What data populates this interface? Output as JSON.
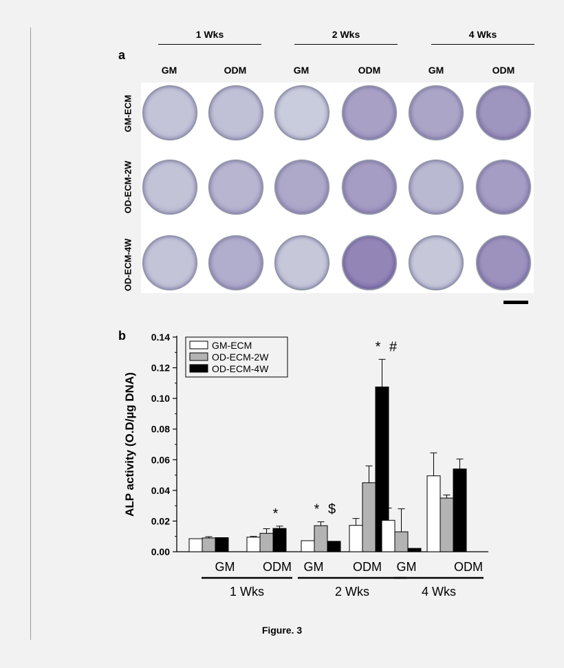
{
  "figure": {
    "caption": "Figure. 3",
    "panel_a_label": "a",
    "panel_b_label": "b",
    "week_headers": [
      "1 Wks",
      "2 Wks",
      "4 Wks"
    ],
    "column_headers": [
      "GM",
      "ODM",
      "GM",
      "ODM",
      "GM",
      "ODM"
    ],
    "row_labels": [
      "GM-ECM",
      "OD-ECM-2W",
      "OD-ECM-4W"
    ],
    "stain_intensity": [
      [
        0.1,
        0.15,
        0.0,
        0.55,
        0.5,
        0.7
      ],
      [
        0.12,
        0.3,
        0.45,
        0.6,
        0.25,
        0.6
      ],
      [
        0.1,
        0.4,
        0.05,
        0.9,
        0.05,
        0.75
      ]
    ],
    "stain_color": "#5b3f91",
    "dish_color": "#c9ccdc"
  },
  "chart_data": {
    "type": "bar",
    "ylabel": "ALP activity (O.D/µg DNA)",
    "xlabel": "",
    "ylim": [
      0,
      0.14
    ],
    "yticks": [
      "0.00",
      "0.02",
      "0.04",
      "0.06",
      "0.08",
      "0.10",
      "0.12",
      "0.14"
    ],
    "groups": [
      {
        "label": "1 Wks",
        "media": [
          "GM",
          "ODM"
        ]
      },
      {
        "label": "2 Wks",
        "media": [
          "GM",
          "ODM"
        ]
      },
      {
        "label": "4 Wks",
        "media": [
          "GM",
          "ODM"
        ]
      }
    ],
    "categories": [
      "GM",
      "ODM",
      "GM",
      "ODM",
      "GM",
      "ODM"
    ],
    "series": [
      {
        "name": "GM-ECM",
        "color": "#ffffff",
        "values": [
          0.0085,
          0.0095,
          0.0072,
          0.0172,
          0.0205,
          0.0495
        ],
        "errors": [
          0.0,
          0.0005,
          0.0,
          0.0045,
          0.008,
          0.015
        ]
      },
      {
        "name": "OD-ECM-2W",
        "color": "#b3b3b3",
        "values": [
          0.009,
          0.012,
          0.017,
          0.045,
          0.013,
          0.035
        ],
        "errors": [
          0.0008,
          0.003,
          0.0025,
          0.011,
          0.015,
          0.002
        ]
      },
      {
        "name": "OD-ECM-4W",
        "color": "#000000",
        "values": [
          0.0092,
          0.0152,
          0.0068,
          0.1075,
          0.0022,
          0.054
        ],
        "errors": [
          0.0,
          0.0015,
          0.0,
          0.018,
          0.0,
          0.0065
        ]
      }
    ],
    "annotations": [
      {
        "category": 1,
        "series": 2,
        "text": "*"
      },
      {
        "category": 2,
        "series": 1,
        "text": "*"
      },
      {
        "category": 2,
        "series": 1,
        "text": "$"
      },
      {
        "category": 3,
        "series": 2,
        "text": "*"
      },
      {
        "category": 3,
        "series": 2,
        "text": "#"
      }
    ],
    "legend_position": "top-left",
    "grid": false
  }
}
